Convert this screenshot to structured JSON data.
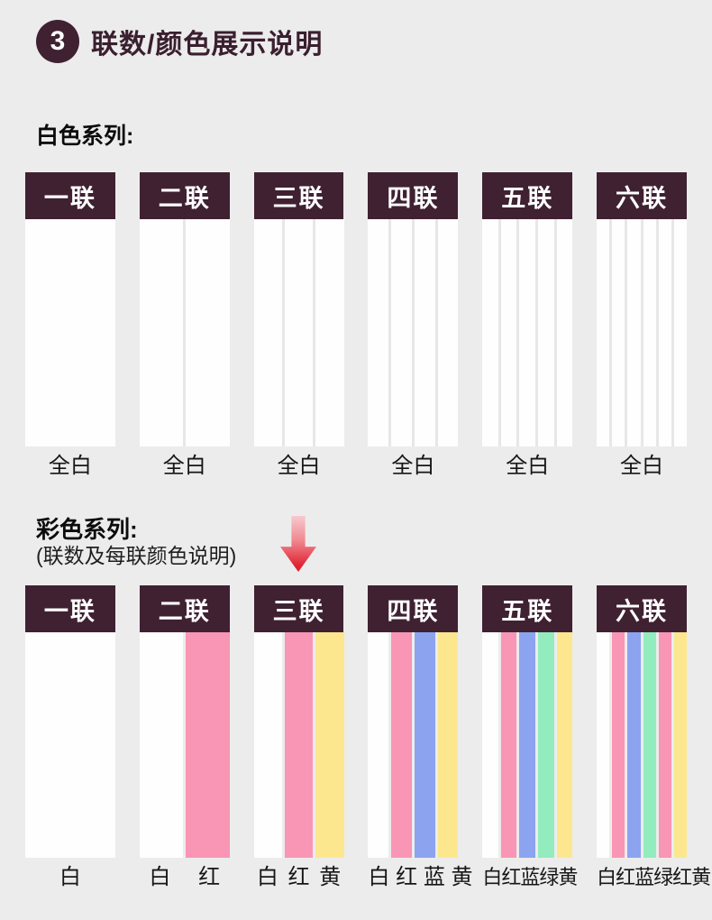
{
  "page": {
    "background": "#ececec"
  },
  "header": {
    "badge_number": "3",
    "title": "联数/颜色展示说明"
  },
  "white_series": {
    "label": "白色系列:",
    "columns": [
      {
        "header": "一联",
        "strips": [
          "white"
        ],
        "caption": "全白"
      },
      {
        "header": "二联",
        "strips": [
          "white",
          "white"
        ],
        "caption": "全白"
      },
      {
        "header": "三联",
        "strips": [
          "white",
          "white",
          "white"
        ],
        "caption": "全白"
      },
      {
        "header": "四联",
        "strips": [
          "white",
          "white",
          "white",
          "white"
        ],
        "caption": "全白"
      },
      {
        "header": "五联",
        "strips": [
          "white",
          "white",
          "white",
          "white",
          "white"
        ],
        "caption": "全白"
      },
      {
        "header": "六联",
        "strips": [
          "white",
          "white",
          "white",
          "white",
          "white",
          "white"
        ],
        "caption": "全白"
      }
    ]
  },
  "color_series": {
    "label": "彩色系列:",
    "sublabel": "(联数及每联颜色说明)",
    "arrow_icon": "down-arrow-icon",
    "columns": [
      {
        "header": "一联",
        "strips": [
          "white"
        ],
        "caption": "白"
      },
      {
        "header": "二联",
        "strips": [
          "white",
          "red"
        ],
        "caption": "白 红"
      },
      {
        "header": "三联",
        "strips": [
          "white",
          "red",
          "yellow"
        ],
        "caption": "白 红 黄"
      },
      {
        "header": "四联",
        "strips": [
          "white",
          "red",
          "blue",
          "yellow"
        ],
        "caption": "白 红 蓝 黄"
      },
      {
        "header": "五联",
        "strips": [
          "white",
          "red",
          "blue",
          "green",
          "yellow"
        ],
        "caption": "白红蓝绿黄"
      },
      {
        "header": "六联",
        "strips": [
          "white",
          "red",
          "blue",
          "green",
          "red",
          "yellow"
        ],
        "caption": "白红蓝绿红黄"
      }
    ]
  },
  "colors": {
    "white": "#fefefe",
    "red": "#f995b5",
    "blue": "#8ca3f0",
    "green": "#92ecbd",
    "yellow": "#fce78f",
    "header_bg": "#3f2132",
    "title_text": "#3a1f2e",
    "page_bg": "#ececec",
    "arrow_top": "#f7c9ce",
    "arrow_bottom": "#df2130"
  }
}
